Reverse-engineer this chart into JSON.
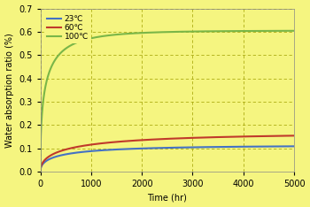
{
  "title": "",
  "xlabel": "Time (hr)",
  "ylabel": "Water absorption ratio (%)",
  "xlim": [
    0,
    5000
  ],
  "ylim": [
    0.0,
    0.7
  ],
  "yticks": [
    0.0,
    0.1,
    0.2,
    0.3,
    0.4,
    0.5,
    0.6,
    0.7
  ],
  "xticks": [
    0,
    1000,
    2000,
    3000,
    4000,
    5000
  ],
  "background_color": "#f5f580",
  "grid_color": "#a0a000",
  "series": [
    {
      "label": "23℃",
      "color": "#4472c4",
      "saturation": 0.112,
      "rate": 0.048
    },
    {
      "label": "60℃",
      "color": "#c0392b",
      "saturation": 0.165,
      "rate": 0.038
    },
    {
      "label": "100℃",
      "color": "#7ab648",
      "saturation": 0.605,
      "rate": 0.092
    }
  ]
}
